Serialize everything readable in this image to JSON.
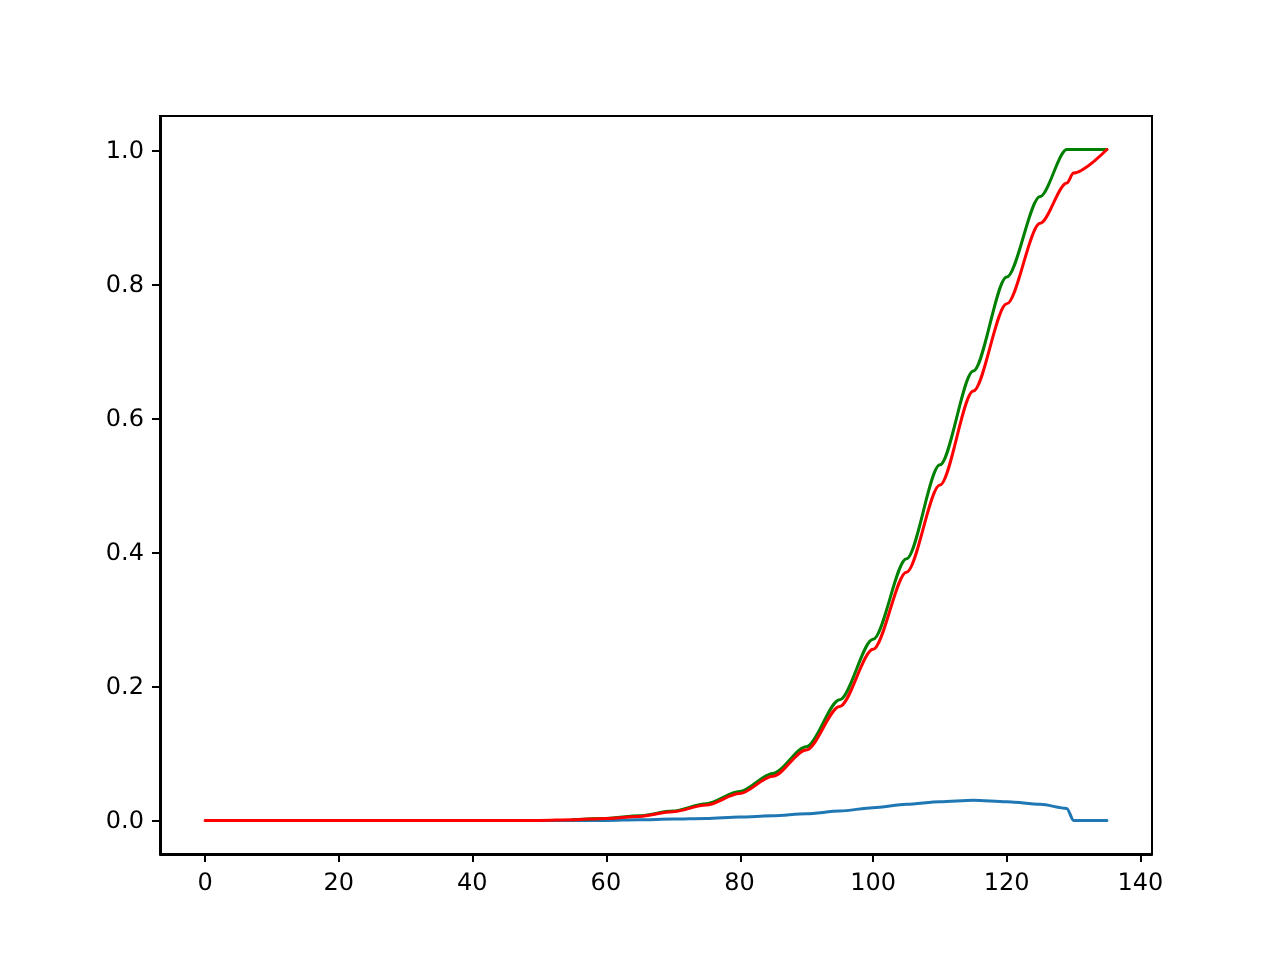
{
  "chart_data": {
    "type": "line",
    "x": [
      0,
      10,
      20,
      30,
      40,
      50,
      55,
      60,
      65,
      70,
      75,
      80,
      85,
      90,
      95,
      100,
      105,
      110,
      115,
      120,
      125,
      129,
      130,
      135
    ],
    "series": [
      {
        "color": "#1f77b4",
        "values": [
          null,
          null,
          null,
          null,
          null,
          0,
          0,
          0,
          0.001,
          0.002,
          0.003,
          0.005,
          0.007,
          0.01,
          0.014,
          0.019,
          0.024,
          0.028,
          0.03,
          0.028,
          0.024,
          0.018,
          0,
          0
        ]
      },
      {
        "color": "#008000",
        "values": [
          null,
          null,
          null,
          null,
          null,
          null,
          0.001,
          0.003,
          0.007,
          0.014,
          0.025,
          0.043,
          0.07,
          0.11,
          0.18,
          0.27,
          0.39,
          0.53,
          0.67,
          0.81,
          0.93,
          1,
          1,
          1
        ]
      },
      {
        "color": "#ff0000",
        "values": [
          0,
          0,
          0,
          0,
          0,
          0,
          0.001,
          0.003,
          0.006,
          0.013,
          0.023,
          0.04,
          0.066,
          0.105,
          0.17,
          0.255,
          0.37,
          0.5,
          0.64,
          0.77,
          0.89,
          0.95,
          0.965,
          1
        ]
      }
    ],
    "xlim": [
      -6.75,
      141.75
    ],
    "xticks": [
      0,
      20,
      40,
      60,
      80,
      100,
      120,
      140
    ],
    "ylim": [
      -0.05,
      1.05
    ],
    "yticks": [
      {
        "value": 0,
        "label": "0.0"
      },
      {
        "value": 0.2,
        "label": "0.2"
      },
      {
        "value": 0.4,
        "label": "0.4"
      },
      {
        "value": 0.6,
        "label": "0.6"
      },
      {
        "value": 0.8,
        "label": "0.8"
      },
      {
        "value": 1,
        "label": "1.0"
      }
    ],
    "grid": false,
    "marker": "none",
    "line_style": "solid"
  }
}
